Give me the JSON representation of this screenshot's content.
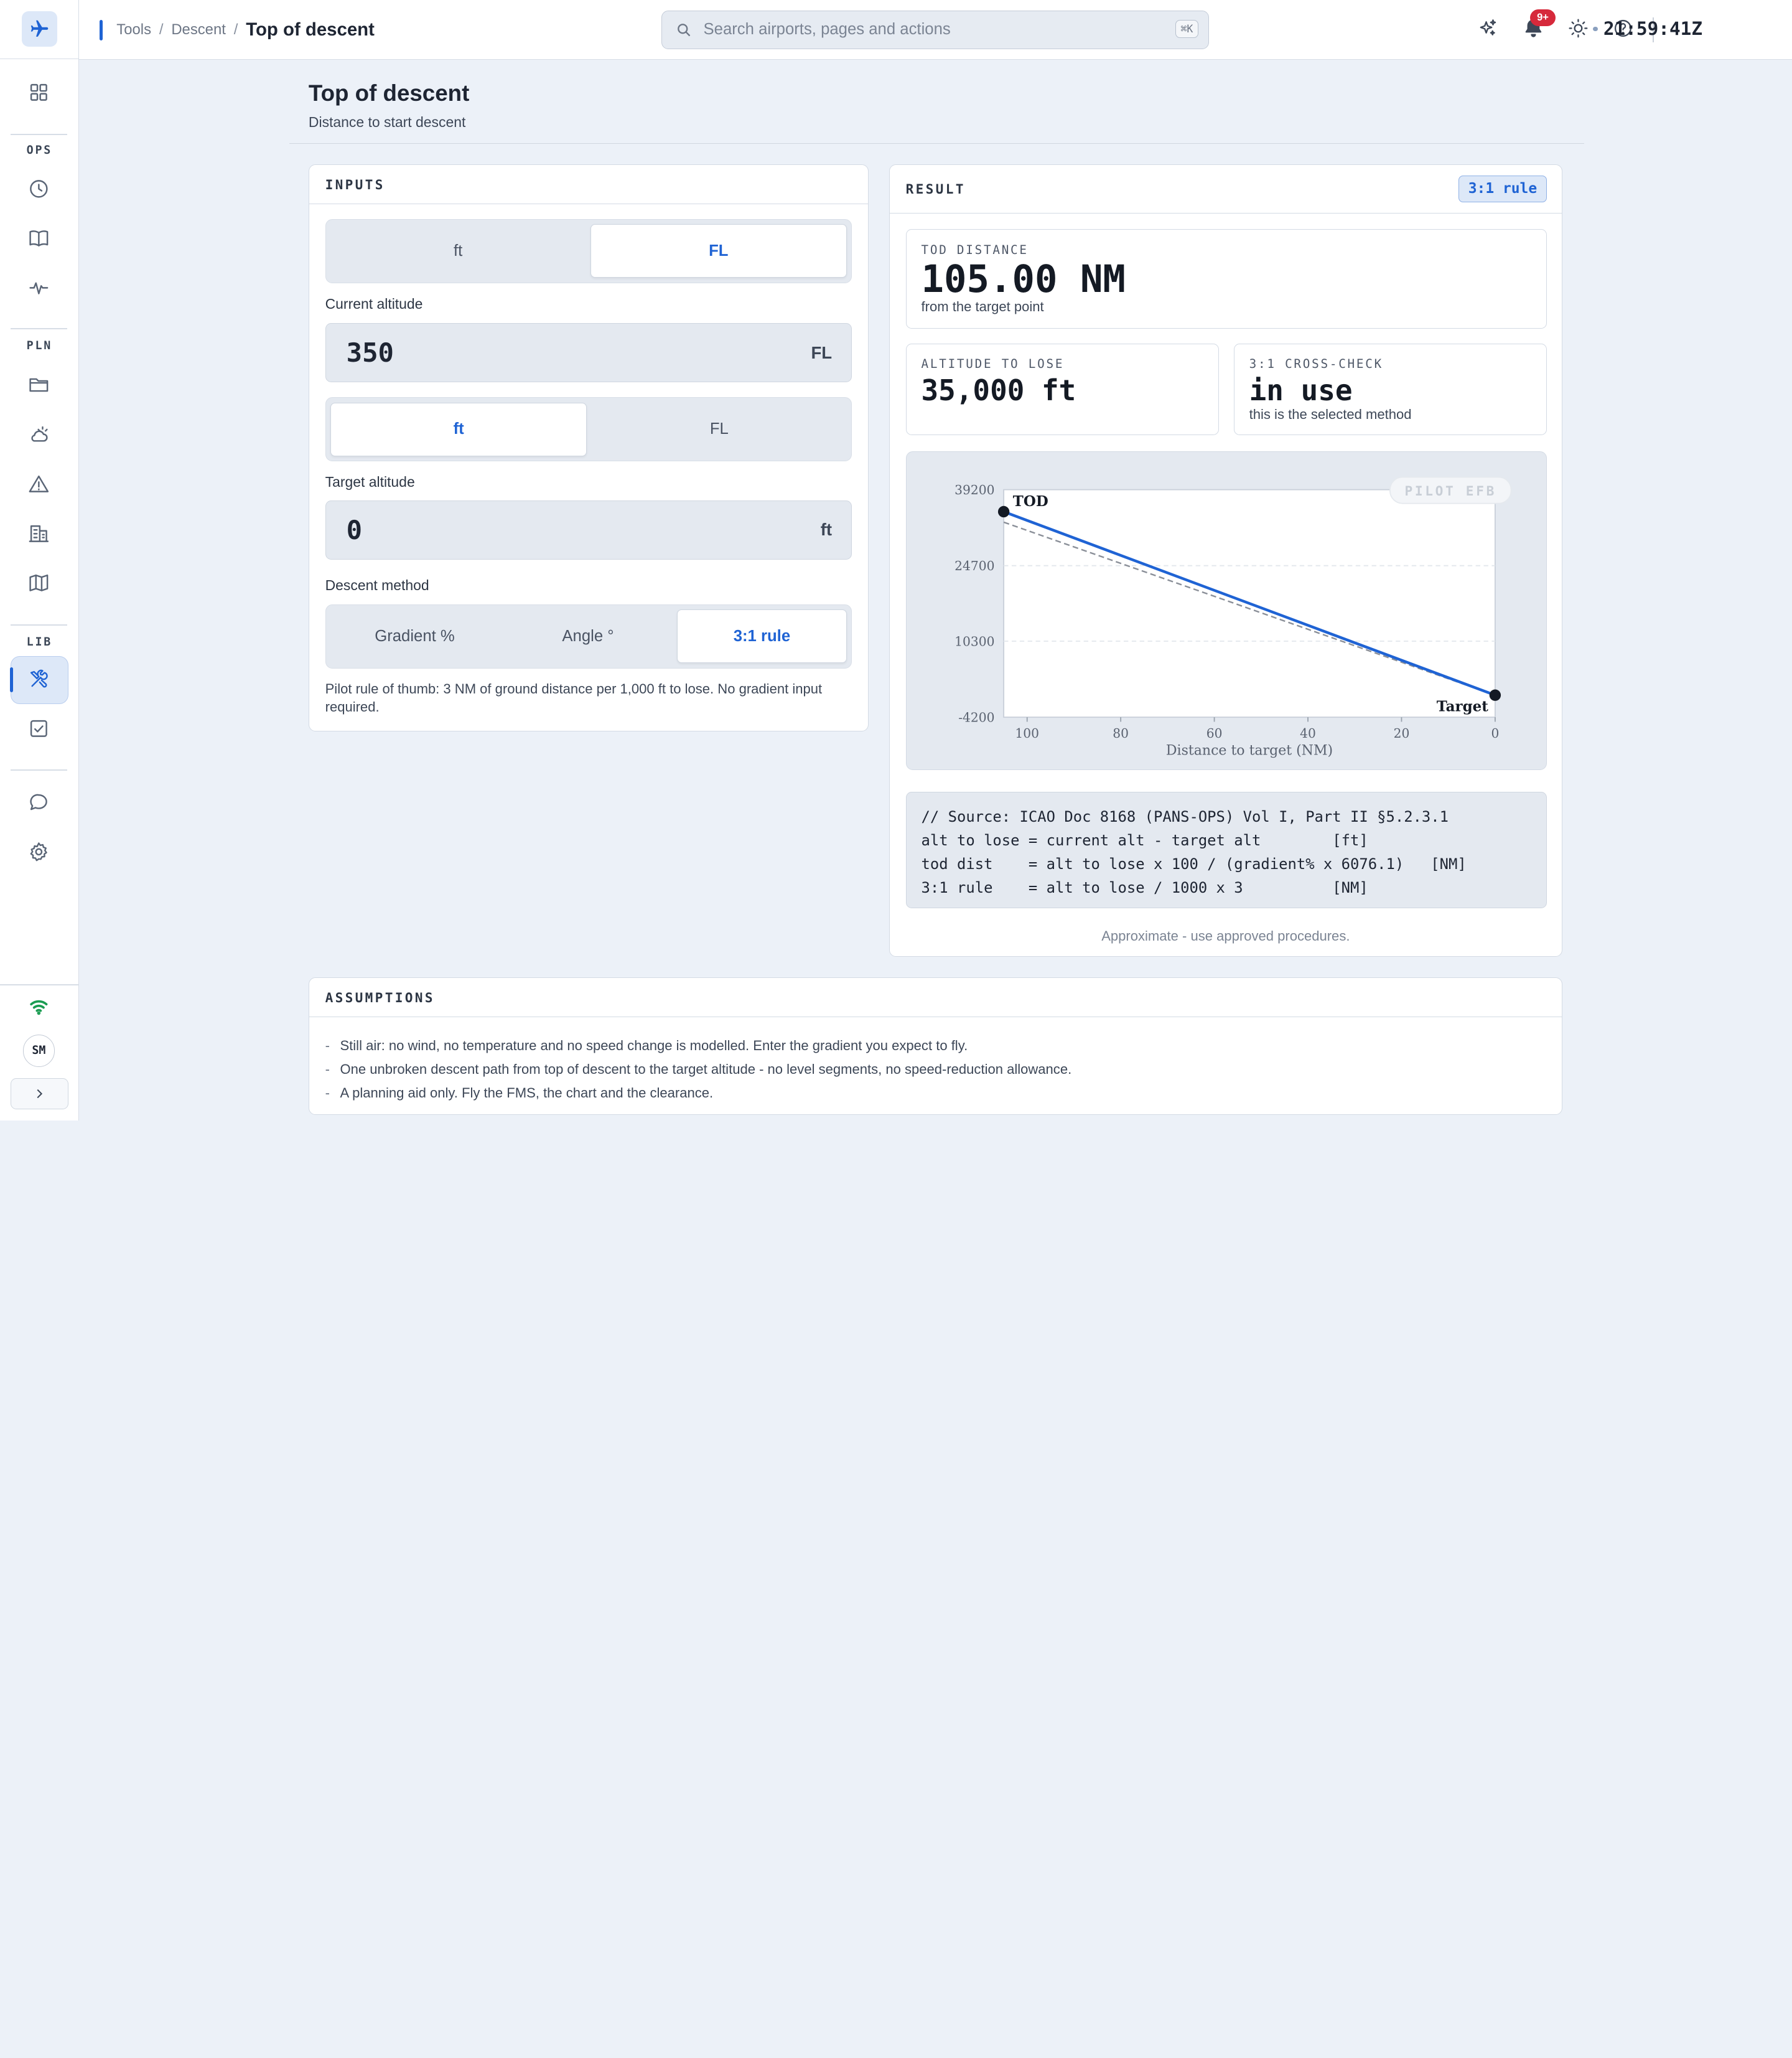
{
  "header": {
    "breadcrumb": [
      "Tools",
      "Descent",
      "Top of descent"
    ],
    "search_placeholder": "Search airports, pages and actions",
    "search_shortcut": "⌘K",
    "notification_count": "9+",
    "clock": "21:59:41Z"
  },
  "sidebar": {
    "sections": [
      "OPS",
      "PLN",
      "LIB"
    ],
    "items": [
      {
        "icon": "dashboard-icon"
      },
      {
        "icon": "clock-icon"
      },
      {
        "icon": "book-icon"
      },
      {
        "icon": "pulse-icon"
      },
      {
        "icon": "folder-icon"
      },
      {
        "icon": "weather-icon"
      },
      {
        "icon": "warning-icon"
      },
      {
        "icon": "building-icon"
      },
      {
        "icon": "map-icon"
      },
      {
        "icon": "tools-icon",
        "active": true
      },
      {
        "icon": "checklist-icon"
      },
      {
        "icon": "chat-icon"
      },
      {
        "icon": "settings-icon"
      }
    ],
    "avatar": "SM"
  },
  "page": {
    "title": "Top of descent",
    "subtitle": "Distance to start descent"
  },
  "inputs": {
    "heading": "INPUTS",
    "current_unit_options": [
      "ft",
      "FL"
    ],
    "current_unit_selected": "FL",
    "current_altitude_label": "Current altitude",
    "current_altitude_value": "350",
    "current_altitude_unit": "FL",
    "target_unit_options": [
      "ft",
      "FL"
    ],
    "target_unit_selected": "ft",
    "target_altitude_label": "Target altitude",
    "target_altitude_value": "0",
    "target_altitude_unit": "ft",
    "method_label": "Descent method",
    "method_options": [
      "Gradient %",
      "Angle °",
      "3:1 rule"
    ],
    "method_selected": "3:1 rule",
    "note": "Pilot rule of thumb: 3 NM of ground distance per 1,000 ft to lose. No gradient input required."
  },
  "result": {
    "heading": "RESULT",
    "method_tag": "3:1 rule",
    "tod_label": "TOD DISTANCE",
    "tod_value": "105.00 NM",
    "tod_sub": "from the target point",
    "alt_label": "ALTITUDE TO LOSE",
    "alt_value": "35,000 ft",
    "cross_label": "3:1 CROSS-CHECK",
    "cross_value": "in use",
    "cross_sub": "this is the selected method",
    "watermark": "PILOT EFB",
    "formula": [
      "// Source: ICAO Doc 8168 (PANS-OPS) Vol I, Part II §5.2.3.1",
      "alt to lose = current alt - target alt        [ft]",
      "tod dist    = alt to lose x 100 / (gradient% x 6076.1)   [NM]",
      "3:1 rule    = alt to lose / 1000 x 3          [NM]"
    ],
    "footnote": "Approximate - use approved procedures."
  },
  "chart_data": {
    "type": "line",
    "xlabel": "Distance to target (NM)",
    "ylabel": "",
    "xlim": [
      105,
      0
    ],
    "ylim": [
      -4200,
      39200
    ],
    "x_ticks": [
      100,
      80,
      60,
      40,
      20,
      0
    ],
    "y_ticks": [
      39200,
      24700,
      10300,
      -4200
    ],
    "series": [
      {
        "x": [
          105,
          0
        ],
        "y": [
          35000,
          0
        ],
        "color": "#1f63d4",
        "style": "solid"
      },
      {
        "x": [
          105,
          0
        ],
        "y": [
          33000,
          0
        ],
        "color": "#8a8f98",
        "style": "dashed"
      }
    ],
    "annotations": [
      {
        "label": "TOD",
        "x": 105,
        "y": 35000
      },
      {
        "label": "Target",
        "x": 0,
        "y": 0
      }
    ]
  },
  "assumptions": {
    "heading": "ASSUMPTIONS",
    "items": [
      "Still air: no wind, no temperature and no speed change is modelled. Enter the gradient you expect to fly.",
      "One unbroken descent path from top of descent to the target altitude - no level segments, no speed-reduction allowance.",
      "A planning aid only. Fly the FMS, the chart and the clearance."
    ]
  }
}
